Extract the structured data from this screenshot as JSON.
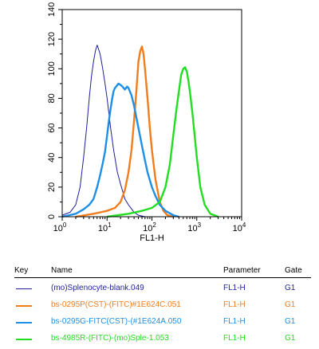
{
  "chart_data": {
    "type": "line",
    "title": "",
    "xlabel": "FL1-H",
    "ylabel": "",
    "xscale": "log",
    "xlim": [
      1,
      10000
    ],
    "ylim": [
      0,
      140
    ],
    "x_ticks": [
      {
        "value": 1,
        "base": "10",
        "exp": "0"
      },
      {
        "value": 10,
        "base": "10",
        "exp": "1"
      },
      {
        "value": 100,
        "base": "10",
        "exp": "2"
      },
      {
        "value": 1000,
        "base": "10",
        "exp": "3"
      },
      {
        "value": 10000,
        "base": "10",
        "exp": "4"
      }
    ],
    "y_ticks": [
      0,
      20,
      40,
      60,
      80,
      100,
      120,
      140
    ],
    "grid": false,
    "series": [
      {
        "name": "(mo)Splenocyte-blank.049",
        "color": "#1f1f9e",
        "points": [
          [
            1,
            1
          ],
          [
            1.5,
            3
          ],
          [
            2,
            8
          ],
          [
            2.5,
            20
          ],
          [
            3,
            40
          ],
          [
            3.5,
            60
          ],
          [
            4,
            80
          ],
          [
            4.5,
            95
          ],
          [
            5,
            105
          ],
          [
            5.5,
            112
          ],
          [
            6,
            116
          ],
          [
            6.5,
            113
          ],
          [
            7,
            110
          ],
          [
            7.5,
            105
          ],
          [
            8,
            100
          ],
          [
            9,
            90
          ],
          [
            10,
            80
          ],
          [
            12,
            60
          ],
          [
            14,
            45
          ],
          [
            17,
            30
          ],
          [
            20,
            22
          ],
          [
            25,
            12
          ],
          [
            30,
            8
          ],
          [
            40,
            3
          ],
          [
            50,
            1
          ],
          [
            70,
            0
          ],
          [
            100,
            0
          ]
        ]
      },
      {
        "name": "bs-0295P(CST)-(FITC)#1E624C.051",
        "color": "#f07d1e",
        "points": [
          [
            2,
            0
          ],
          [
            5,
            2
          ],
          [
            10,
            4
          ],
          [
            15,
            6
          ],
          [
            20,
            10
          ],
          [
            25,
            18
          ],
          [
            30,
            30
          ],
          [
            35,
            45
          ],
          [
            40,
            65
          ],
          [
            45,
            85
          ],
          [
            50,
            105
          ],
          [
            55,
            112
          ],
          [
            60,
            115
          ],
          [
            65,
            110
          ],
          [
            70,
            100
          ],
          [
            80,
            80
          ],
          [
            90,
            60
          ],
          [
            100,
            45
          ],
          [
            120,
            25
          ],
          [
            150,
            10
          ],
          [
            180,
            4
          ],
          [
            220,
            1
          ],
          [
            300,
            0
          ]
        ]
      },
      {
        "name": "bs-0295G-FITC(CST)-(#1E624A.050",
        "color": "#1e8fe6",
        "points": [
          [
            1,
            0
          ],
          [
            2,
            2
          ],
          [
            3,
            5
          ],
          [
            4,
            8
          ],
          [
            5,
            12
          ],
          [
            6,
            20
          ],
          [
            7,
            28
          ],
          [
            8,
            36
          ],
          [
            9,
            44
          ],
          [
            10,
            55
          ],
          [
            11,
            65
          ],
          [
            12,
            73
          ],
          [
            13,
            80
          ],
          [
            14,
            85
          ],
          [
            15,
            87
          ],
          [
            16,
            88
          ],
          [
            18,
            90
          ],
          [
            20,
            89
          ],
          [
            22,
            88
          ],
          [
            25,
            86
          ],
          [
            28,
            88
          ],
          [
            30,
            87
          ],
          [
            35,
            82
          ],
          [
            40,
            75
          ],
          [
            50,
            60
          ],
          [
            60,
            48
          ],
          [
            70,
            38
          ],
          [
            80,
            30
          ],
          [
            100,
            20
          ],
          [
            120,
            14
          ],
          [
            150,
            8
          ],
          [
            200,
            4
          ],
          [
            300,
            1
          ],
          [
            400,
            0
          ]
        ]
      },
      {
        "name": "bs-4985R-(FITC)-(mo)Sple-1.053",
        "color": "#22dd22",
        "points": [
          [
            10,
            0
          ],
          [
            30,
            2
          ],
          [
            60,
            4
          ],
          [
            100,
            6
          ],
          [
            150,
            10
          ],
          [
            200,
            20
          ],
          [
            250,
            35
          ],
          [
            300,
            55
          ],
          [
            350,
            72
          ],
          [
            400,
            85
          ],
          [
            450,
            96
          ],
          [
            500,
            100
          ],
          [
            550,
            101
          ],
          [
            600,
            98
          ],
          [
            650,
            92
          ],
          [
            700,
            85
          ],
          [
            800,
            70
          ],
          [
            1000,
            40
          ],
          [
            1200,
            20
          ],
          [
            1500,
            8
          ],
          [
            2000,
            2
          ],
          [
            3000,
            0
          ]
        ]
      }
    ]
  },
  "key_table": {
    "headers": {
      "key": "Key",
      "name": "Name",
      "parameter": "Parameter",
      "gate": "Gate"
    },
    "rows": [
      {
        "name": "(mo)Splenocyte-blank.049",
        "parameter": "FL1-H",
        "gate": "G1",
        "color": "#1f1f9e"
      },
      {
        "name": "bs-0295P(CST)-(FITC)#1E624C.051",
        "parameter": "FL1-H",
        "gate": "G1",
        "color": "#f07d1e"
      },
      {
        "name": "bs-0295G-FITC(CST)-(#1E624A.050",
        "parameter": "FL1-H",
        "gate": "G1",
        "color": "#1e8fe6"
      },
      {
        "name": "bs-4985R-(FITC)-(mo)Sple-1.053",
        "parameter": "FL1-H",
        "gate": "G1",
        "color": "#22dd22"
      }
    ]
  }
}
